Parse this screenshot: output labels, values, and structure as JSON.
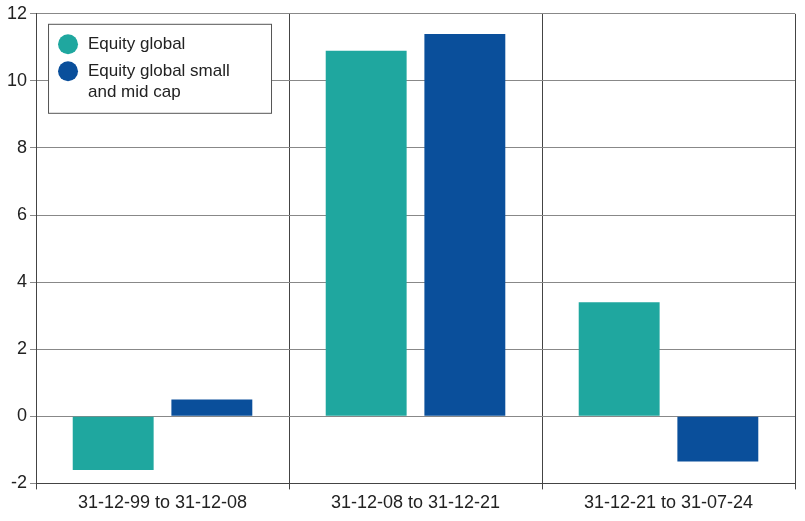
{
  "chart_data": {
    "type": "bar",
    "categories": [
      "31-12-99 to 31-12-08",
      "31-12-08 to 31-12-21",
      "31-12-21 to 31-07-24"
    ],
    "series": [
      {
        "name": "Equity global",
        "color": "#1fa79f",
        "values": [
          -1.6,
          10.9,
          3.4
        ]
      },
      {
        "name": "Equity global small and mid cap",
        "color": "#0a4f9b",
        "values": [
          0.5,
          11.4,
          -1.35
        ]
      }
    ],
    "ylim": [
      -2,
      12
    ],
    "yticks": [
      -2,
      0,
      2,
      4,
      6,
      8,
      10,
      12
    ],
    "grid": true,
    "legend": "upper left"
  }
}
